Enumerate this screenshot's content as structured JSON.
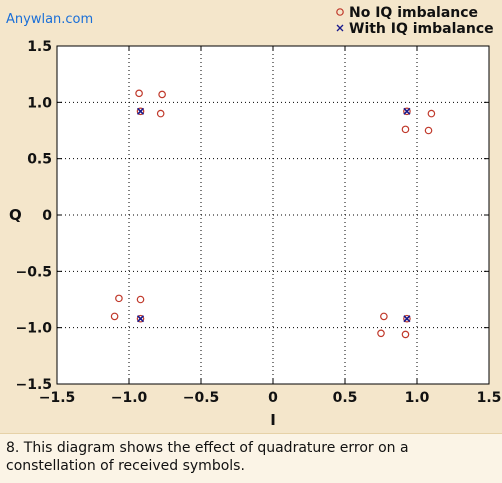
{
  "watermark": "Anywlan.com",
  "caption": "8. This diagram shows the effect of quadrature error on a constellation of received symbols.",
  "chart_data": {
    "type": "scatter",
    "xlabel": "I",
    "ylabel": "Q",
    "xlim": [
      -1.5,
      1.5
    ],
    "ylim": [
      -1.5,
      1.5
    ],
    "xticks": [
      -1.5,
      -1.0,
      -0.5,
      0,
      0.5,
      1.0,
      1.5
    ],
    "xtick_labels": [
      "−1.5",
      "−1.0",
      "−0.5",
      "0",
      "0.5",
      "1.0",
      "1.5"
    ],
    "yticks": [
      -1.5,
      -1.0,
      -0.5,
      0,
      0.5,
      1.0,
      1.5
    ],
    "ytick_labels": [
      "−1.5",
      "−1.0",
      "−0.5",
      "0",
      "0.5",
      "1.0",
      "1.5"
    ],
    "grid": true,
    "legend_position": "top-right",
    "series": [
      {
        "name": "No IQ imbalance",
        "marker": "circle",
        "color": "#c0392b",
        "points": [
          [
            -0.93,
            1.08
          ],
          [
            -0.77,
            1.07
          ],
          [
            -0.78,
            0.9
          ],
          [
            -0.92,
            0.92
          ],
          [
            0.93,
            0.92
          ],
          [
            1.1,
            0.9
          ],
          [
            0.92,
            0.76
          ],
          [
            1.08,
            0.75
          ],
          [
            -1.07,
            -0.74
          ],
          [
            -0.92,
            -0.75
          ],
          [
            -1.1,
            -0.9
          ],
          [
            -0.92,
            -0.92
          ],
          [
            0.77,
            -0.9
          ],
          [
            0.93,
            -0.92
          ],
          [
            0.75,
            -1.05
          ],
          [
            0.92,
            -1.06
          ]
        ]
      },
      {
        "name": "With IQ imbalance",
        "marker": "x",
        "color": "#1a1a8c",
        "points": [
          [
            -0.92,
            0.92
          ],
          [
            0.93,
            0.92
          ],
          [
            -0.92,
            -0.92
          ],
          [
            0.93,
            -0.92
          ]
        ]
      }
    ]
  }
}
